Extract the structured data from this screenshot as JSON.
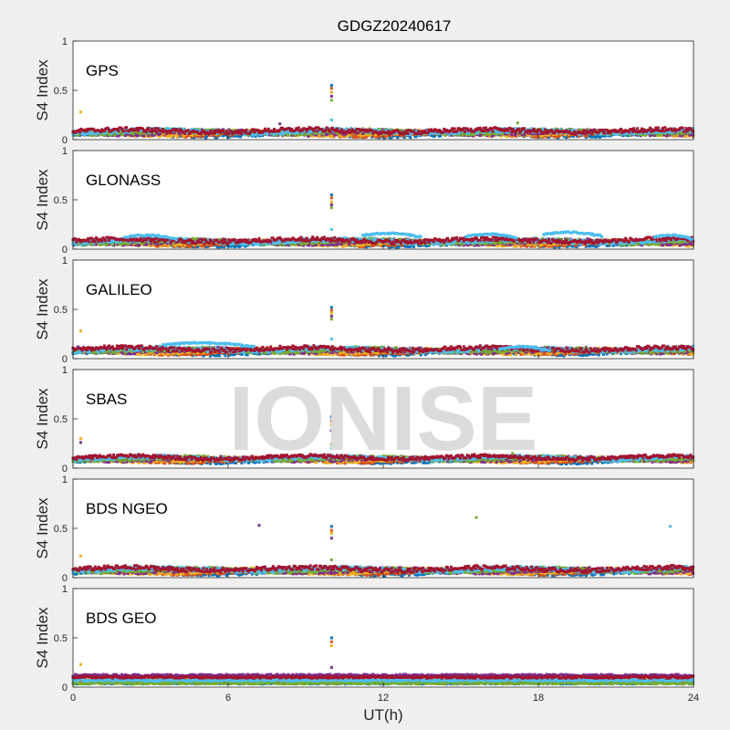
{
  "title": "GDGZ20240617",
  "watermark": "IONISE",
  "xlabel": "UT(h)",
  "ylabel": "S4 Index",
  "colors": {
    "figure_bg": "#f0f0f0",
    "axes_bg": "#ffffff",
    "axis": "#262626",
    "watermark": "#dcdcdc",
    "series": [
      "#0072BD",
      "#D95319",
      "#EDB120",
      "#7E2F8E",
      "#77AC30",
      "#4DBEEE",
      "#A2142F"
    ]
  },
  "chart_data": [
    {
      "type": "scatter",
      "panel": "GPS",
      "xlim": [
        0,
        24
      ],
      "ylim": [
        0,
        1
      ],
      "xticks": [
        0,
        6,
        12,
        18,
        24
      ],
      "yticks": [
        0,
        0.5,
        1
      ],
      "baseline_mean": 0.07,
      "spread": 0.03,
      "spike": {
        "x": 10.0,
        "y": [
          0.55,
          0.52,
          0.48,
          0.44,
          0.4,
          0.2
        ]
      },
      "outliers": [
        {
          "x": 0.3,
          "y": 0.28
        },
        {
          "x": 8.0,
          "y": 0.16
        },
        {
          "x": 17.2,
          "y": 0.17
        }
      ]
    },
    {
      "type": "scatter",
      "panel": "GLONASS",
      "xlim": [
        0,
        24
      ],
      "ylim": [
        0,
        1
      ],
      "xticks": [
        0,
        6,
        12,
        18,
        24
      ],
      "yticks": [
        0,
        0.5,
        1
      ],
      "baseline_mean": 0.07,
      "spread": 0.03,
      "arcs": [
        {
          "x0": 2.0,
          "x1": 4.0,
          "y": 0.12
        },
        {
          "x0": 11.2,
          "x1": 13.5,
          "y": 0.14
        },
        {
          "x0": 15.2,
          "x1": 17.2,
          "y": 0.13
        },
        {
          "x0": 18.2,
          "x1": 20.5,
          "y": 0.15
        },
        {
          "x0": 22.5,
          "x1": 24.0,
          "y": 0.12
        }
      ],
      "spike": {
        "x": 10.0,
        "y": [
          0.55,
          0.52,
          0.48,
          0.45,
          0.42,
          0.2
        ]
      },
      "outliers": []
    },
    {
      "type": "scatter",
      "panel": "GALILEO",
      "xlim": [
        0,
        24
      ],
      "ylim": [
        0,
        1
      ],
      "xticks": [
        0,
        6,
        12,
        18,
        24
      ],
      "yticks": [
        0,
        0.5,
        1
      ],
      "baseline_mean": 0.08,
      "spread": 0.03,
      "arcs": [
        {
          "x0": 3.5,
          "x1": 7.0,
          "y": 0.14
        },
        {
          "x0": 16.5,
          "x1": 18.5,
          "y": 0.1
        }
      ],
      "spike": {
        "x": 10.0,
        "y": [
          0.52,
          0.49,
          0.46,
          0.43,
          0.4,
          0.2
        ]
      },
      "outliers": [
        {
          "x": 0.3,
          "y": 0.28
        },
        {
          "x": 0.2,
          "y": 0.12
        }
      ]
    },
    {
      "type": "scatter",
      "panel": "SBAS",
      "xlim": [
        0,
        24
      ],
      "ylim": [
        0,
        1
      ],
      "xticks": [
        0,
        6,
        12,
        18,
        24
      ],
      "yticks": [
        0,
        0.5,
        1
      ],
      "baseline_mean": 0.09,
      "spread": 0.025,
      "spike": {
        "x": 10.0,
        "y": [
          0.52,
          0.48,
          0.44,
          0.38,
          0.24,
          0.2
        ]
      },
      "outliers": [
        {
          "x": 0.3,
          "y": 0.3
        },
        {
          "x": 0.3,
          "y": 0.26
        },
        {
          "x": 17.0,
          "y": 0.15
        }
      ]
    },
    {
      "type": "scatter",
      "panel": "BDS NGEO",
      "xlim": [
        0,
        24
      ],
      "ylim": [
        0,
        1
      ],
      "xticks": [
        0,
        6,
        12,
        18,
        24
      ],
      "yticks": [
        0,
        0.5,
        1
      ],
      "baseline_mean": 0.07,
      "spread": 0.03,
      "spike": {
        "x": 10.0,
        "y": [
          0.52,
          0.48,
          0.45,
          0.4,
          0.18
        ]
      },
      "outliers": [
        {
          "x": 0.3,
          "y": 0.22
        },
        {
          "x": 7.2,
          "y": 0.53
        },
        {
          "x": 15.6,
          "y": 0.61
        },
        {
          "x": 23.1,
          "y": 0.52
        }
      ]
    },
    {
      "type": "scatter",
      "panel": "BDS GEO",
      "xlim": [
        0,
        24
      ],
      "ylim": [
        0,
        1
      ],
      "xticks": [
        0,
        6,
        12,
        18,
        24
      ],
      "yticks": [
        0,
        0.5,
        1
      ],
      "baseline_mean": 0.09,
      "spread": 0.02,
      "bands": [
        0.04,
        0.07,
        0.1,
        0.12
      ],
      "spike": {
        "x": 10.0,
        "y": [
          0.5,
          0.46,
          0.42,
          0.2
        ]
      },
      "outliers": [
        {
          "x": 0.3,
          "y": 0.23
        }
      ]
    }
  ]
}
